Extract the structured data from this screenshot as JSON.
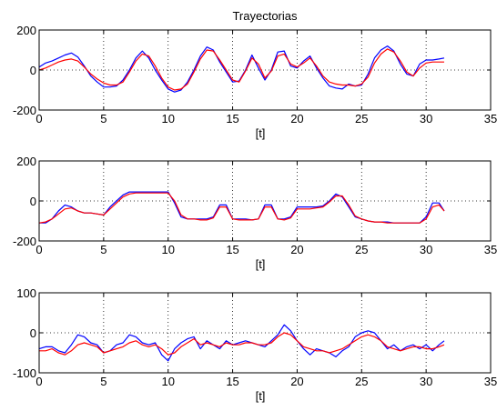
{
  "figure": {
    "title": "Trayectorias"
  },
  "colors": {
    "background": "#ffffff",
    "axes": "#000000",
    "grid": "#000000",
    "series_a": "#0000ff",
    "series_b": "#ff0000"
  },
  "chart_data": [
    {
      "type": "line",
      "title": "Trayectorias",
      "xlabel": "[t]",
      "ylabel": "",
      "xlim": [
        0,
        35
      ],
      "ylim": [
        -200,
        200
      ],
      "xticks": [
        0,
        5,
        10,
        15,
        20,
        25,
        30,
        35
      ],
      "yticks": [
        -200,
        0,
        200
      ],
      "grid": true,
      "series": [
        {
          "color": "#0000ff",
          "x": [
            0,
            0.5,
            1,
            1.5,
            2,
            2.5,
            3,
            3.5,
            4,
            4.5,
            5,
            5.5,
            6,
            6.5,
            7,
            7.5,
            8,
            8.5,
            9,
            9.5,
            10,
            10.5,
            11,
            11.5,
            12,
            12.5,
            13,
            13.5,
            14,
            14.5,
            15,
            15.5,
            16,
            16.5,
            17,
            17.5,
            18,
            18.5,
            19,
            19.5,
            20,
            20.5,
            21,
            21.5,
            22,
            22.5,
            23,
            23.5,
            24,
            24.5,
            25,
            25.5,
            26,
            26.5,
            27,
            27.5,
            28,
            28.5,
            29,
            29.5,
            30,
            30.5,
            31,
            31.4
          ],
          "y": [
            15,
            35,
            45,
            60,
            75,
            85,
            65,
            20,
            -30,
            -60,
            -85,
            -85,
            -80,
            -50,
            0,
            60,
            95,
            60,
            0,
            -50,
            -95,
            -110,
            -100,
            -60,
            0,
            70,
            115,
            100,
            40,
            -10,
            -60,
            -55,
            0,
            75,
            10,
            -50,
            0,
            90,
            95,
            20,
            10,
            45,
            70,
            10,
            -40,
            -80,
            -90,
            -95,
            -70,
            -80,
            -75,
            -20,
            60,
            100,
            120,
            95,
            30,
            -20,
            -30,
            30,
            50,
            50,
            55,
            60
          ]
        },
        {
          "color": "#ff0000",
          "x": [
            0,
            0.5,
            1,
            1.5,
            2,
            2.5,
            3,
            3.5,
            4,
            4.5,
            5,
            5.5,
            6,
            6.5,
            7,
            7.5,
            8,
            8.5,
            9,
            9.5,
            10,
            10.5,
            11,
            11.5,
            12,
            12.5,
            13,
            13.5,
            14,
            14.5,
            15,
            15.5,
            16,
            16.5,
            17,
            17.5,
            18,
            18.5,
            19,
            19.5,
            20,
            20.5,
            21,
            21.5,
            22,
            22.5,
            23,
            23.5,
            24,
            24.5,
            25,
            25.5,
            26,
            26.5,
            27,
            27.5,
            28,
            28.5,
            29,
            29.5,
            30,
            30.5,
            31,
            31.4
          ],
          "y": [
            0,
            10,
            25,
            40,
            50,
            55,
            45,
            15,
            -20,
            -45,
            -65,
            -75,
            -75,
            -60,
            -10,
            45,
            80,
            70,
            20,
            -40,
            -85,
            -100,
            -95,
            -70,
            -10,
            55,
            100,
            95,
            50,
            0,
            -50,
            -60,
            -5,
            60,
            30,
            -40,
            -5,
            70,
            80,
            30,
            15,
            35,
            60,
            20,
            -30,
            -60,
            -70,
            -75,
            -75,
            -80,
            -70,
            -35,
            35,
            80,
            105,
            90,
            45,
            -10,
            -30,
            10,
            35,
            40,
            40,
            40
          ]
        }
      ]
    },
    {
      "type": "line",
      "title": "",
      "xlabel": "[t]",
      "ylabel": "",
      "xlim": [
        0,
        35
      ],
      "ylim": [
        -200,
        200
      ],
      "xticks": [
        0,
        5,
        10,
        15,
        20,
        25,
        30,
        35
      ],
      "yticks": [
        -200,
        0,
        200
      ],
      "grid": true,
      "series": [
        {
          "color": "#0000ff",
          "x": [
            0,
            0.5,
            1,
            1.5,
            2,
            2.5,
            3,
            3.5,
            4,
            4.5,
            5,
            5.5,
            6,
            6.5,
            7,
            7.5,
            8,
            8.5,
            9,
            9.5,
            10,
            10.5,
            11,
            11.5,
            12,
            12.5,
            13,
            13.5,
            14,
            14.5,
            15,
            15.5,
            16,
            16.5,
            17,
            17.5,
            18,
            18.5,
            19,
            19.5,
            20,
            20.5,
            21,
            21.5,
            22,
            22.5,
            23,
            23.5,
            24,
            24.5,
            25,
            25.5,
            26,
            26.5,
            27,
            27.5,
            28,
            28.5,
            29,
            29.5,
            30,
            30.5,
            31,
            31.4
          ],
          "y": [
            -110,
            -110,
            -90,
            -50,
            -20,
            -30,
            -50,
            -60,
            -60,
            -65,
            -70,
            -30,
            0,
            30,
            45,
            45,
            45,
            45,
            45,
            45,
            45,
            -10,
            -80,
            -90,
            -90,
            -90,
            -90,
            -80,
            -20,
            -20,
            -90,
            -90,
            -90,
            -95,
            -90,
            -20,
            -20,
            -90,
            -90,
            -80,
            -30,
            -30,
            -30,
            -30,
            -25,
            0,
            35,
            20,
            -30,
            -80,
            -90,
            -100,
            -105,
            -105,
            -105,
            -110,
            -110,
            -110,
            -110,
            -110,
            -80,
            -10,
            -10,
            -50
          ]
        },
        {
          "color": "#ff0000",
          "x": [
            0,
            0.5,
            1,
            1.5,
            2,
            2.5,
            3,
            3.5,
            4,
            4.5,
            5,
            5.5,
            6,
            6.5,
            7,
            7.5,
            8,
            8.5,
            9,
            9.5,
            10,
            10.5,
            11,
            11.5,
            12,
            12.5,
            13,
            13.5,
            14,
            14.5,
            15,
            15.5,
            16,
            16.5,
            17,
            17.5,
            18,
            18.5,
            19,
            19.5,
            20,
            20.5,
            21,
            21.5,
            22,
            22.5,
            23,
            23.5,
            24,
            24.5,
            25,
            25.5,
            26,
            26.5,
            27,
            27.5,
            28,
            28.5,
            29,
            29.5,
            30,
            30.5,
            31,
            31.4
          ],
          "y": [
            -110,
            -105,
            -90,
            -65,
            -40,
            -35,
            -50,
            -60,
            -60,
            -65,
            -70,
            -40,
            -10,
            20,
            35,
            40,
            40,
            40,
            40,
            40,
            40,
            0,
            -70,
            -90,
            -90,
            -95,
            -95,
            -85,
            -30,
            -30,
            -90,
            -95,
            -95,
            -95,
            -90,
            -30,
            -30,
            -90,
            -95,
            -85,
            -40,
            -40,
            -40,
            -35,
            -30,
            -5,
            25,
            25,
            -20,
            -75,
            -90,
            -100,
            -105,
            -105,
            -110,
            -110,
            -110,
            -110,
            -110,
            -110,
            -90,
            -30,
            -20,
            -50
          ]
        }
      ]
    },
    {
      "type": "line",
      "title": "",
      "xlabel": "[t]",
      "ylabel": "",
      "xlim": [
        0,
        35
      ],
      "ylim": [
        -100,
        100
      ],
      "xticks": [
        0,
        5,
        10,
        15,
        20,
        25,
        30,
        35
      ],
      "yticks": [
        -100,
        0,
        100
      ],
      "grid": true,
      "series": [
        {
          "color": "#0000ff",
          "x": [
            0,
            0.5,
            1,
            1.5,
            2,
            2.5,
            3,
            3.5,
            4,
            4.5,
            5,
            5.5,
            6,
            6.5,
            7,
            7.5,
            8,
            8.5,
            9,
            9.5,
            10,
            10.5,
            11,
            11.5,
            12,
            12.5,
            13,
            13.5,
            14,
            14.5,
            15,
            15.5,
            16,
            16.5,
            17,
            17.5,
            18,
            18.5,
            19,
            19.5,
            20,
            20.5,
            21,
            21.5,
            22,
            22.5,
            23,
            23.5,
            24,
            24.5,
            25,
            25.5,
            26,
            26.5,
            27,
            27.5,
            28,
            28.5,
            29,
            29.5,
            30,
            30.5,
            31,
            31.4
          ],
          "y": [
            -40,
            -35,
            -35,
            -45,
            -50,
            -30,
            -5,
            -10,
            -25,
            -30,
            -50,
            -45,
            -30,
            -25,
            -5,
            -10,
            -25,
            -30,
            -25,
            -55,
            -70,
            -40,
            -25,
            -15,
            -10,
            -40,
            -20,
            -30,
            -40,
            -20,
            -30,
            -25,
            -20,
            -25,
            -30,
            -35,
            -20,
            -5,
            20,
            5,
            -20,
            -40,
            -55,
            -40,
            -45,
            -50,
            -60,
            -45,
            -35,
            -10,
            0,
            5,
            0,
            -20,
            -40,
            -30,
            -45,
            -35,
            -30,
            -40,
            -30,
            -45,
            -30,
            -20
          ]
        },
        {
          "color": "#ff0000",
          "x": [
            0,
            0.5,
            1,
            1.5,
            2,
            2.5,
            3,
            3.5,
            4,
            4.5,
            5,
            5.5,
            6,
            6.5,
            7,
            7.5,
            8,
            8.5,
            9,
            9.5,
            10,
            10.5,
            11,
            11.5,
            12,
            12.5,
            13,
            13.5,
            14,
            14.5,
            15,
            15.5,
            16,
            16.5,
            17,
            17.5,
            18,
            18.5,
            19,
            19.5,
            20,
            20.5,
            21,
            21.5,
            22,
            22.5,
            23,
            23.5,
            24,
            24.5,
            25,
            25.5,
            26,
            26.5,
            27,
            27.5,
            28,
            28.5,
            29,
            29.5,
            30,
            30.5,
            31,
            31.4
          ],
          "y": [
            -45,
            -45,
            -40,
            -50,
            -55,
            -45,
            -30,
            -25,
            -30,
            -35,
            -50,
            -45,
            -40,
            -35,
            -25,
            -20,
            -30,
            -35,
            -30,
            -40,
            -55,
            -50,
            -35,
            -25,
            -15,
            -30,
            -25,
            -30,
            -35,
            -25,
            -30,
            -30,
            -25,
            -25,
            -30,
            -30,
            -25,
            -10,
            0,
            -5,
            -20,
            -35,
            -40,
            -45,
            -45,
            -50,
            -45,
            -40,
            -30,
            -20,
            -10,
            -5,
            -10,
            -20,
            -35,
            -40,
            -45,
            -40,
            -35,
            -35,
            -40,
            -40,
            -35,
            -30
          ]
        }
      ]
    }
  ]
}
